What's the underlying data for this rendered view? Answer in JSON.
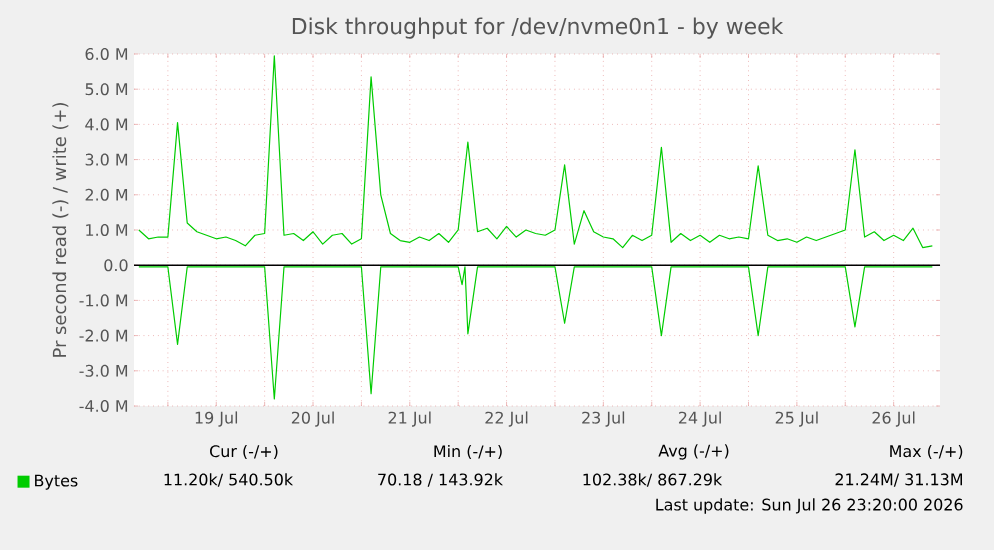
{
  "chart_data": {
    "type": "line",
    "title": "Disk throughput for /dev/nvme0n1 - by week",
    "ylabel": "Pr second read (-) / write (+)",
    "xlim": [
      "2026-07-18T15:36",
      "2026-07-26T23:30"
    ],
    "xticks": [
      {
        "value": "2026-07-19",
        "label": null
      },
      {
        "value": "2026-07-19T12:00",
        "label": "19 Jul"
      },
      {
        "value": "2026-07-20",
        "label": null
      },
      {
        "value": "2026-07-20T12:00",
        "label": "20 Jul"
      },
      {
        "value": "2026-07-21",
        "label": null
      },
      {
        "value": "2026-07-21T12:00",
        "label": "21 Jul"
      },
      {
        "value": "2026-07-22",
        "label": null
      },
      {
        "value": "2026-07-22T12:00",
        "label": "22 Jul"
      },
      {
        "value": "2026-07-23",
        "label": null
      },
      {
        "value": "2026-07-23T12:00",
        "label": "23 Jul"
      },
      {
        "value": "2026-07-24",
        "label": null
      },
      {
        "value": "2026-07-24T12:00",
        "label": "24 Jul"
      },
      {
        "value": "2026-07-25",
        "label": null
      },
      {
        "value": "2026-07-25T12:00",
        "label": "25 Jul"
      },
      {
        "value": "2026-07-26",
        "label": null
      },
      {
        "value": "2026-07-26T12:00",
        "label": "26 Jul"
      }
    ],
    "ylim": [
      -4,
      6
    ],
    "yticks": [
      {
        "value": -4,
        "label": "-4.0 M"
      },
      {
        "value": -3,
        "label": "-3.0 M"
      },
      {
        "value": -2,
        "label": "-2.0 M"
      },
      {
        "value": -1,
        "label": "-1.0 M"
      },
      {
        "value": 0,
        "label": "0.0"
      },
      {
        "value": 1,
        "label": "1.0 M"
      },
      {
        "value": 2,
        "label": "2.0 M"
      },
      {
        "value": 3,
        "label": "3.0 M"
      },
      {
        "value": 4,
        "label": "4.0 M"
      },
      {
        "value": 5,
        "label": "5.0 M"
      },
      {
        "value": 6,
        "label": "6.0 M"
      }
    ],
    "grid": true,
    "legend": "bottom",
    "series": [
      {
        "name": "Bytes",
        "color": "#00cc00",
        "x": [
          "2026-07-18T16:48",
          "2026-07-18T19:12",
          "2026-07-18T21:36",
          "2026-07-19T00:00",
          "2026-07-19T02:24",
          "2026-07-19T04:48",
          "2026-07-19T07:12",
          "2026-07-19T09:36",
          "2026-07-19T12:00",
          "2026-07-19T14:24",
          "2026-07-19T16:48",
          "2026-07-19T19:12",
          "2026-07-19T21:36",
          "2026-07-20T00:00",
          "2026-07-20T02:24",
          "2026-07-20T04:48",
          "2026-07-20T07:12",
          "2026-07-20T09:36",
          "2026-07-20T12:00",
          "2026-07-20T14:24",
          "2026-07-20T16:48",
          "2026-07-20T19:12",
          "2026-07-20T21:36",
          "2026-07-21T00:00",
          "2026-07-21T02:24",
          "2026-07-21T04:48",
          "2026-07-21T07:12",
          "2026-07-21T09:36",
          "2026-07-21T12:00",
          "2026-07-21T14:24",
          "2026-07-21T16:48",
          "2026-07-21T19:12",
          "2026-07-21T21:36",
          "2026-07-22T00:00",
          "2026-07-22T02:24",
          "2026-07-22T04:48",
          "2026-07-22T07:12",
          "2026-07-22T09:36",
          "2026-07-22T12:00",
          "2026-07-22T14:24",
          "2026-07-22T16:48",
          "2026-07-22T19:12",
          "2026-07-22T21:36",
          "2026-07-23T00:00",
          "2026-07-23T02:24",
          "2026-07-23T04:48",
          "2026-07-23T07:12",
          "2026-07-23T09:36",
          "2026-07-23T12:00",
          "2026-07-23T14:24",
          "2026-07-23T16:48",
          "2026-07-23T19:12",
          "2026-07-23T21:36",
          "2026-07-24T00:00",
          "2026-07-24T02:24",
          "2026-07-24T04:48",
          "2026-07-24T07:12",
          "2026-07-24T09:36",
          "2026-07-24T12:00",
          "2026-07-24T14:24",
          "2026-07-24T16:48",
          "2026-07-24T19:12",
          "2026-07-24T21:36",
          "2026-07-25T00:00",
          "2026-07-25T02:24",
          "2026-07-25T04:48",
          "2026-07-25T07:12",
          "2026-07-25T09:36",
          "2026-07-25T12:00",
          "2026-07-25T14:24",
          "2026-07-25T16:48",
          "2026-07-25T19:12",
          "2026-07-25T21:36",
          "2026-07-26T00:00",
          "2026-07-26T02:24",
          "2026-07-26T04:48",
          "2026-07-26T07:12",
          "2026-07-26T09:36",
          "2026-07-26T12:00",
          "2026-07-26T14:24",
          "2026-07-26T16:48",
          "2026-07-26T19:12",
          "2026-07-26T21:36"
        ],
        "values": [
          1.0,
          0.75,
          0.8,
          0.8,
          4.05,
          1.2,
          0.95,
          0.85,
          0.75,
          0.8,
          0.7,
          0.55,
          0.85,
          0.9,
          5.95,
          0.85,
          0.9,
          0.7,
          0.95,
          0.6,
          0.85,
          0.9,
          0.6,
          0.75,
          5.35,
          2.0,
          0.9,
          0.7,
          0.65,
          0.8,
          0.7,
          0.9,
          0.65,
          1.0,
          3.5,
          0.95,
          1.05,
          0.75,
          1.1,
          0.8,
          1.0,
          0.9,
          0.85,
          1.0,
          2.85,
          0.6,
          1.55,
          0.95,
          0.8,
          0.75,
          0.5,
          0.85,
          0.7,
          0.85,
          3.35,
          0.65,
          0.9,
          0.7,
          0.85,
          0.65,
          0.85,
          0.75,
          0.8,
          0.75,
          2.82,
          0.85,
          0.7,
          0.75,
          0.65,
          0.8,
          0.7,
          0.8,
          0.9,
          1.0,
          3.28,
          0.8,
          0.95,
          0.7,
          0.85,
          0.7,
          1.05,
          0.5,
          0.55
        ]
      },
      {
        "color": "#00cc00",
        "x": [
          "2026-07-18T16:48",
          "2026-07-19T00:00",
          "2026-07-19T02:24",
          "2026-07-19T04:48",
          "2026-07-20T00:00",
          "2026-07-20T02:24",
          "2026-07-20T04:48",
          "2026-07-21T00:00",
          "2026-07-21T02:24",
          "2026-07-21T04:48",
          "2026-07-22T00:00",
          "2026-07-22T00:58",
          "2026-07-22T01:41",
          "2026-07-22T02:24",
          "2026-07-22T04:48",
          "2026-07-23T00:00",
          "2026-07-23T02:24",
          "2026-07-23T04:48",
          "2026-07-24T00:00",
          "2026-07-24T02:24",
          "2026-07-24T04:48",
          "2026-07-25T00:00",
          "2026-07-25T02:24",
          "2026-07-25T04:48",
          "2026-07-26T00:00",
          "2026-07-26T02:24",
          "2026-07-26T04:48",
          "2026-07-26T21:36"
        ],
        "values": [
          -0.05,
          -0.05,
          -2.25,
          -0.05,
          -0.05,
          -3.8,
          -0.05,
          -0.05,
          -3.65,
          -0.05,
          -0.05,
          -0.55,
          -0.05,
          -1.95,
          -0.05,
          -0.05,
          -1.65,
          -0.05,
          -0.05,
          -2.0,
          -0.05,
          -0.05,
          -2.0,
          -0.05,
          -0.05,
          -1.75,
          -0.05,
          -0.05
        ]
      }
    ],
    "ref_lines": [
      {
        "axis": "y",
        "value": 0,
        "color": "#000000"
      }
    ],
    "annotations": [
      "Cur (-/+)",
      "Min (-/+)",
      "Avg (-/+)",
      "Max (-/+)",
      "11.20k/ 540.50k",
      "70.18 / 143.92k",
      "102.38k/ 867.29k",
      "21.24M/ 31.13M",
      "Last update: Sun Jul 26 23:20:00 2026"
    ]
  }
}
